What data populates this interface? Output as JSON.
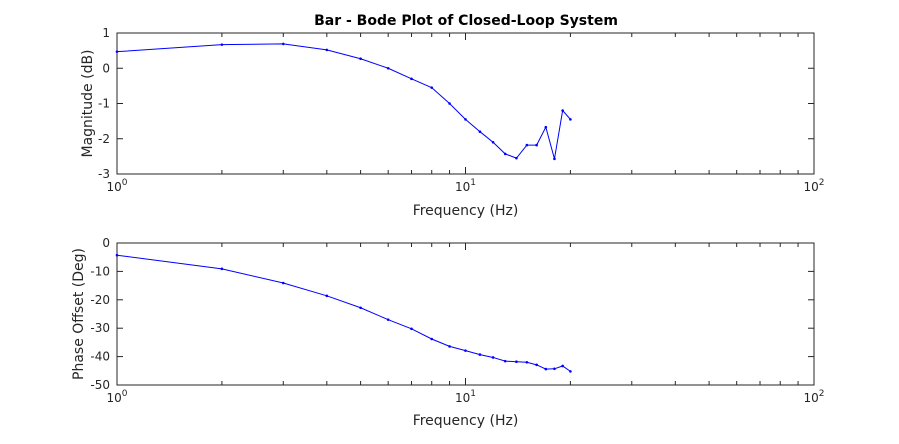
{
  "chart_data": [
    {
      "type": "line",
      "title": "Bar - Bode Plot of Closed-Loop System",
      "xlabel": "Frequency (Hz)",
      "ylabel": "Magnitude (dB)",
      "xscale": "log",
      "xlim": [
        1,
        100
      ],
      "ylim": [
        -3,
        1
      ],
      "xticks": [
        {
          "base": "10",
          "exp": "0"
        },
        {
          "base": "10",
          "exp": "1"
        },
        {
          "base": "10",
          "exp": "2"
        }
      ],
      "yticks": [
        "1",
        "0",
        "-1",
        "-2",
        "-3"
      ],
      "grid": false,
      "color": "#0000ff",
      "x": [
        1,
        2,
        3,
        4,
        5,
        6,
        7,
        8,
        9,
        10,
        11,
        12,
        13,
        14,
        15,
        16,
        17,
        18,
        19,
        20
      ],
      "y": [
        0.47,
        0.67,
        0.69,
        0.52,
        0.27,
        0.0,
        -0.3,
        -0.55,
        -1.0,
        -1.45,
        -1.8,
        -2.1,
        -2.43,
        -2.55,
        -2.18,
        -2.18,
        -1.67,
        -2.57,
        -1.2,
        -1.45
      ]
    },
    {
      "type": "line",
      "title": "",
      "xlabel": "Frequency (Hz)",
      "ylabel": "Phase Offset (Deg)",
      "xscale": "log",
      "xlim": [
        1,
        100
      ],
      "ylim": [
        -50,
        0
      ],
      "xticks": [
        {
          "base": "10",
          "exp": "0"
        },
        {
          "base": "10",
          "exp": "1"
        },
        {
          "base": "10",
          "exp": "2"
        }
      ],
      "yticks": [
        "0",
        "-10",
        "-20",
        "-30",
        "-40",
        "-50"
      ],
      "grid": false,
      "color": "#0000ff",
      "x": [
        1,
        2,
        3,
        4,
        5,
        6,
        7,
        8,
        9,
        10,
        11,
        12,
        13,
        14,
        15,
        16,
        17,
        18,
        19,
        20
      ],
      "y": [
        -4.3,
        -9.1,
        -14.1,
        -18.6,
        -22.8,
        -27.0,
        -30.2,
        -33.8,
        -36.4,
        -37.9,
        -39.3,
        -40.3,
        -41.6,
        -41.8,
        -42.0,
        -42.9,
        -44.4,
        -44.3,
        -43.3,
        -45.2
      ]
    }
  ]
}
